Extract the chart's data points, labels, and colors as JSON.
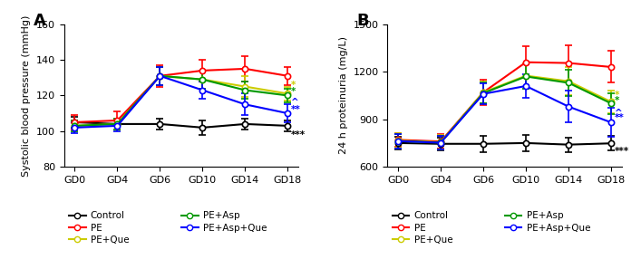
{
  "panel_A": {
    "title": "A",
    "ylabel": "Systolic blood pressure (mmHg)",
    "ylim": [
      80,
      160
    ],
    "yticks": [
      80,
      100,
      120,
      140,
      160
    ],
    "xtick_labels": [
      "GD0",
      "GD4",
      "GD6",
      "GD10",
      "GD14",
      "GD18"
    ],
    "x_positions": [
      0,
      1,
      2,
      3,
      4,
      5
    ],
    "series": {
      "Control": {
        "color": "#000000",
        "y": [
          105,
          104,
          104,
          102,
          104,
          103
        ],
        "yerr": [
          3,
          3,
          3,
          4,
          3,
          3
        ]
      },
      "PE": {
        "color": "#ff0000",
        "y": [
          105,
          106,
          131,
          134,
          135,
          131
        ],
        "yerr": [
          4,
          5,
          6,
          6,
          7,
          5
        ]
      },
      "PE+Que": {
        "color": "#cccc00",
        "y": [
          103,
          104,
          131,
          129,
          125,
          121
        ],
        "yerr": [
          3,
          3,
          5,
          5,
          6,
          4
        ]
      },
      "PE+Asp": {
        "color": "#009900",
        "y": [
          103,
          104,
          131,
          129,
          123,
          120
        ],
        "yerr": [
          3,
          3,
          5,
          5,
          5,
          4
        ]
      },
      "PE+Asp+Que": {
        "color": "#0000ff",
        "y": [
          102,
          103,
          131,
          123,
          115,
          110
        ],
        "yerr": [
          3,
          3,
          5,
          5,
          6,
          5
        ]
      }
    },
    "annotations_GD18": [
      {
        "symbol": "*",
        "color": "#cccc00",
        "y": 126
      },
      {
        "symbol": "*",
        "color": "#009900",
        "y": 122
      },
      {
        "symbol": "^",
        "color": "#0000ff",
        "y": 116
      },
      {
        "symbol": "**",
        "color": "#0000ff",
        "y": 112
      },
      {
        "symbol": "***",
        "color": "#000000",
        "y": 98
      }
    ]
  },
  "panel_B": {
    "title": "B",
    "ylabel": "24 h proteinuria (mg/L)",
    "ylim": [
      600,
      1500
    ],
    "yticks": [
      600,
      900,
      1200,
      1500
    ],
    "xtick_labels": [
      "GD0",
      "GD4",
      "GD6",
      "GD10",
      "GD14",
      "GD18"
    ],
    "x_positions": [
      0,
      1,
      2,
      3,
      4,
      5
    ],
    "series": {
      "Control": {
        "color": "#000000",
        "y": [
          750,
          745,
          745,
          750,
          740,
          748
        ],
        "yerr": [
          40,
          40,
          50,
          50,
          45,
          45
        ]
      },
      "PE": {
        "color": "#ff0000",
        "y": [
          770,
          760,
          1070,
          1260,
          1255,
          1230
        ],
        "yerr": [
          45,
          45,
          80,
          100,
          110,
          100
        ]
      },
      "PE+Que": {
        "color": "#cccc00",
        "y": [
          765,
          755,
          1070,
          1175,
          1140,
          1010
        ],
        "yerr": [
          45,
          45,
          70,
          80,
          90,
          70
        ]
      },
      "PE+Asp": {
        "color": "#009900",
        "y": [
          763,
          753,
          1065,
          1170,
          1130,
          1000
        ],
        "yerr": [
          45,
          45,
          65,
          75,
          85,
          65
        ]
      },
      "PE+Asp+Que": {
        "color": "#0000ff",
        "y": [
          762,
          752,
          1060,
          1110,
          980,
          880
        ],
        "yerr": [
          45,
          45,
          65,
          75,
          100,
          90
        ]
      }
    },
    "annotations_GD18": [
      {
        "symbol": "*",
        "color": "#cccc00",
        "y": 1055
      },
      {
        "symbol": "*",
        "color": "#009900",
        "y": 1020
      },
      {
        "symbol": "^",
        "color": "#0000ff",
        "y": 940
      },
      {
        "symbol": "**",
        "color": "#0000ff",
        "y": 910
      },
      {
        "symbol": "***",
        "color": "#000000",
        "y": 700
      }
    ]
  },
  "legend_colors": {
    "Control": "#000000",
    "PE": "#ff0000",
    "PE+Que": "#cccc00",
    "PE+Asp": "#009900",
    "PE+Asp+Que": "#0000ff"
  },
  "legend_left": [
    "Control",
    "PE",
    "PE+Que"
  ],
  "legend_right": [
    "PE+Asp",
    "PE+Asp+Que"
  ],
  "marker": "o",
  "markersize": 4.5,
  "linewidth": 1.5,
  "capsize": 3,
  "elinewidth": 1.2,
  "figsize": [
    7.07,
    2.97
  ],
  "dpi": 100
}
